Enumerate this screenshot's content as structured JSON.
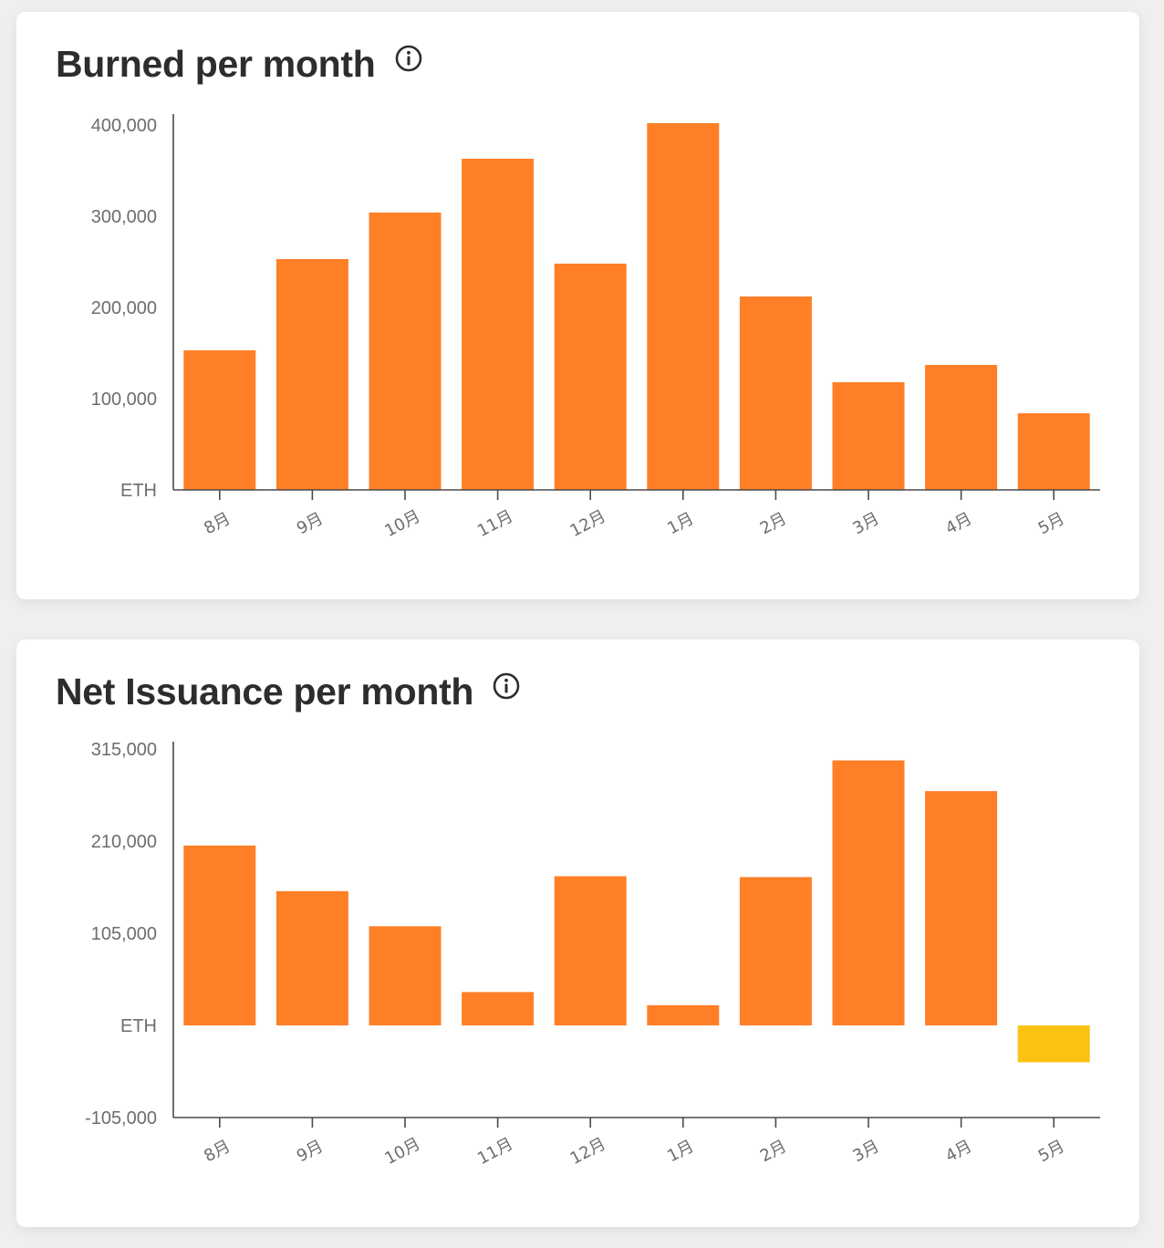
{
  "cards": [
    {
      "title": "Burned per month",
      "info_icon": "info-icon",
      "chart_data": {
        "type": "bar",
        "categories": [
          "8月",
          "9月",
          "10月",
          "11月",
          "12月",
          "1月",
          "2月",
          "3月",
          "4月",
          "5月"
        ],
        "series": [
          {
            "values": [
              153000,
              253000,
              304000,
              363000,
              248000,
              402000,
              212000,
              118000,
              137000,
              84000
            ],
            "colors": [
              "#ff7f27",
              "#ff7f27",
              "#ff7f27",
              "#ff7f27",
              "#ff7f27",
              "#ff7f27",
              "#ff7f27",
              "#ff7f27",
              "#ff7f27",
              "#ff7f27"
            ]
          }
        ],
        "y_ticks": [
          {
            "value": 0,
            "label": "ETH"
          },
          {
            "value": 100000,
            "label": "100,000"
          },
          {
            "value": 200000,
            "label": "200,000"
          },
          {
            "value": 300000,
            "label": "300,000"
          },
          {
            "value": 400000,
            "label": "400,000"
          }
        ],
        "ylim": [
          0,
          404000
        ],
        "grid": false,
        "legend": "none"
      }
    },
    {
      "title": "Net Issuance per month",
      "info_icon": "info-icon",
      "chart_data": {
        "type": "bar",
        "categories": [
          "8月",
          "9月",
          "10月",
          "11月",
          "12月",
          "1月",
          "2月",
          "3月",
          "4月",
          "5月"
        ],
        "series": [
          {
            "values": [
              205000,
              153000,
              113000,
              38000,
              170000,
              23000,
              169000,
              302000,
              267000,
              -42000
            ],
            "colors": [
              "#ff7f27",
              "#ff7f27",
              "#ff7f27",
              "#ff7f27",
              "#ff7f27",
              "#ff7f27",
              "#ff7f27",
              "#ff7f27",
              "#ff7f27",
              "#fac314"
            ]
          }
        ],
        "y_ticks": [
          {
            "value": -105000,
            "label": "-105,000"
          },
          {
            "value": 0,
            "label": "ETH"
          },
          {
            "value": 105000,
            "label": "105,000"
          },
          {
            "value": 210000,
            "label": "210,000"
          },
          {
            "value": 315000,
            "label": "315,000"
          }
        ],
        "ylim": [
          -105000,
          315000
        ],
        "grid": false,
        "legend": "none"
      }
    }
  ]
}
